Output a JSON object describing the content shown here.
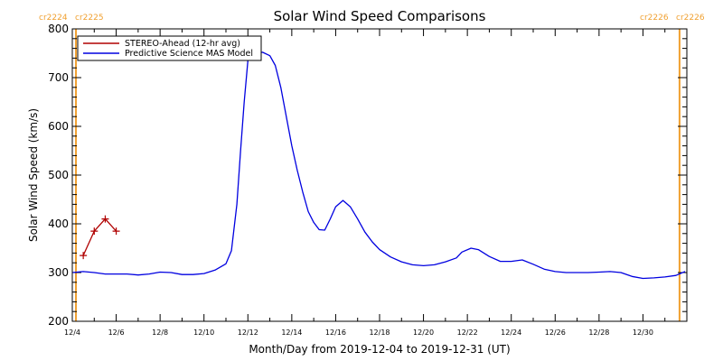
{
  "chart_data": {
    "type": "line",
    "title": "Solar Wind Speed Comparisons",
    "xlabel": "Month/Day from 2019-12-04 to 2019-12-31 (UT)",
    "ylabel": "Solar Wind Speed (km/s)",
    "xlim": [
      "2019-12-04",
      "2020-01-01"
    ],
    "ylim": [
      200,
      800
    ],
    "x_tick_labels": [
      "12/4",
      "12/6",
      "12/8",
      "12/10",
      "12/12",
      "12/14",
      "12/16",
      "12/18",
      "12/20",
      "12/22",
      "12/24",
      "12/26",
      "12/28",
      "12/30"
    ],
    "y_ticks": [
      200,
      300,
      400,
      500,
      600,
      700,
      800
    ],
    "legend": {
      "position": "top-left",
      "entries": [
        {
          "label": "STEREO-Ahead (12-hr avg)",
          "color": "#b00000"
        },
        {
          "label": "Predictive Science MAS Model",
          "color": "#0000e0"
        }
      ]
    },
    "carrington_rotations": [
      {
        "label": "cr2224",
        "side": "left"
      },
      {
        "label": "cr2225",
        "side": "left"
      },
      {
        "label": "cr2226",
        "side": "right"
      },
      {
        "label": "cr2226",
        "side": "right"
      }
    ],
    "rotation_line_color": "#f0a030",
    "rotation_lines_x": [
      "2019-12-04T04:00",
      "2019-12-31T16:00"
    ],
    "series": [
      {
        "name": "STEREO-Ahead (12-hr avg)",
        "color": "#b00000",
        "marker": "+",
        "points": [
          [
            "2019-12-04T12:00",
            335
          ],
          [
            "2019-12-05T00:00",
            385
          ],
          [
            "2019-12-05T12:00",
            410
          ],
          [
            "2019-12-06T00:00",
            385
          ]
        ]
      },
      {
        "name": "Predictive Science MAS Model",
        "color": "#0000e0",
        "points": [
          [
            "2019-12-04T00:00",
            300
          ],
          [
            "2019-12-04T12:00",
            302
          ],
          [
            "2019-12-05T00:00",
            300
          ],
          [
            "2019-12-05T12:00",
            297
          ],
          [
            "2019-12-06T00:00",
            297
          ],
          [
            "2019-12-06T12:00",
            297
          ],
          [
            "2019-12-07T00:00",
            295
          ],
          [
            "2019-12-07T12:00",
            297
          ],
          [
            "2019-12-08T00:00",
            301
          ],
          [
            "2019-12-08T12:00",
            300
          ],
          [
            "2019-12-09T00:00",
            296
          ],
          [
            "2019-12-09T12:00",
            296
          ],
          [
            "2019-12-10T00:00",
            298
          ],
          [
            "2019-12-10T12:00",
            305
          ],
          [
            "2019-12-11T00:00",
            318
          ],
          [
            "2019-12-11T06:00",
            345
          ],
          [
            "2019-12-11T12:00",
            440
          ],
          [
            "2019-12-11T16:00",
            550
          ],
          [
            "2019-12-11T20:00",
            650
          ],
          [
            "2019-12-12T00:00",
            735
          ],
          [
            "2019-12-12T08:00",
            750
          ],
          [
            "2019-12-12T16:00",
            752
          ],
          [
            "2019-12-13T00:00",
            745
          ],
          [
            "2019-12-13T06:00",
            725
          ],
          [
            "2019-12-13T12:00",
            680
          ],
          [
            "2019-12-13T18:00",
            620
          ],
          [
            "2019-12-14T00:00",
            560
          ],
          [
            "2019-12-14T06:00",
            510
          ],
          [
            "2019-12-14T12:00",
            465
          ],
          [
            "2019-12-14T18:00",
            425
          ],
          [
            "2019-12-15T00:00",
            403
          ],
          [
            "2019-12-15T06:00",
            388
          ],
          [
            "2019-12-15T12:00",
            387
          ],
          [
            "2019-12-15T18:00",
            410
          ],
          [
            "2019-12-16T00:00",
            435
          ],
          [
            "2019-12-16T08:00",
            448
          ],
          [
            "2019-12-16T16:00",
            435
          ],
          [
            "2019-12-17T00:00",
            410
          ],
          [
            "2019-12-17T08:00",
            383
          ],
          [
            "2019-12-17T16:00",
            363
          ],
          [
            "2019-12-18T00:00",
            347
          ],
          [
            "2019-12-18T12:00",
            332
          ],
          [
            "2019-12-19T00:00",
            322
          ],
          [
            "2019-12-19T12:00",
            316
          ],
          [
            "2019-12-20T00:00",
            314
          ],
          [
            "2019-12-20T12:00",
            316
          ],
          [
            "2019-12-21T00:00",
            322
          ],
          [
            "2019-12-21T12:00",
            330
          ],
          [
            "2019-12-21T18:00",
            342
          ],
          [
            "2019-12-22T04:00",
            350
          ],
          [
            "2019-12-22T12:00",
            347
          ],
          [
            "2019-12-23T00:00",
            333
          ],
          [
            "2019-12-23T12:00",
            323
          ],
          [
            "2019-12-24T00:00",
            323
          ],
          [
            "2019-12-24T12:00",
            326
          ],
          [
            "2019-12-25T00:00",
            317
          ],
          [
            "2019-12-25T12:00",
            307
          ],
          [
            "2019-12-26T00:00",
            302
          ],
          [
            "2019-12-26T12:00",
            300
          ],
          [
            "2019-12-27T00:00",
            300
          ],
          [
            "2019-12-27T12:00",
            300
          ],
          [
            "2019-12-28T00:00",
            301
          ],
          [
            "2019-12-28T12:00",
            302
          ],
          [
            "2019-12-29T00:00",
            300
          ],
          [
            "2019-12-29T12:00",
            292
          ],
          [
            "2019-12-30T00:00",
            288
          ],
          [
            "2019-12-30T12:00",
            289
          ],
          [
            "2019-12-31T00:00",
            291
          ],
          [
            "2019-12-31T12:00",
            294
          ],
          [
            "2019-12-31T22:00",
            302
          ]
        ]
      }
    ]
  }
}
